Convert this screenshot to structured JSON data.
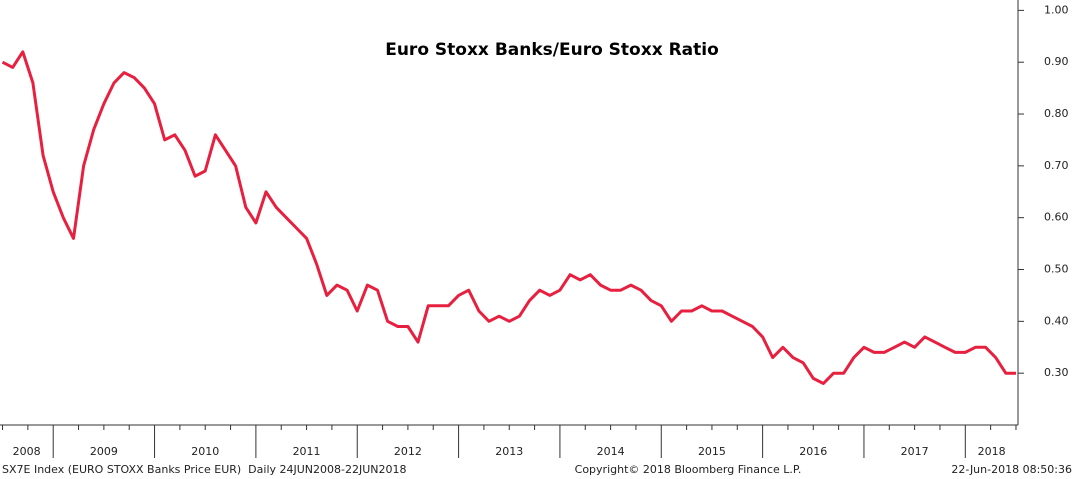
{
  "chart_data": {
    "type": "line",
    "title": "Euro Stoxx Banks/Euro Stoxx Ratio",
    "x": [
      2008.5,
      2008.6,
      2008.7,
      2008.8,
      2008.9,
      2009.0,
      2009.1,
      2009.2,
      2009.3,
      2009.4,
      2009.5,
      2009.6,
      2009.7,
      2009.8,
      2009.9,
      2010.0,
      2010.1,
      2010.2,
      2010.3,
      2010.4,
      2010.5,
      2010.6,
      2010.7,
      2010.8,
      2010.9,
      2011.0,
      2011.1,
      2011.2,
      2011.3,
      2011.4,
      2011.5,
      2011.6,
      2011.7,
      2011.8,
      2011.9,
      2012.0,
      2012.1,
      2012.2,
      2012.3,
      2012.4,
      2012.5,
      2012.6,
      2012.7,
      2012.8,
      2012.9,
      2013.0,
      2013.1,
      2013.2,
      2013.3,
      2013.4,
      2013.5,
      2013.6,
      2013.7,
      2013.8,
      2013.9,
      2014.0,
      2014.1,
      2014.2,
      2014.3,
      2014.4,
      2014.5,
      2014.6,
      2014.7,
      2014.8,
      2014.9,
      2015.0,
      2015.1,
      2015.2,
      2015.3,
      2015.4,
      2015.5,
      2015.6,
      2015.7,
      2015.8,
      2015.9,
      2016.0,
      2016.1,
      2016.2,
      2016.3,
      2016.4,
      2016.5,
      2016.6,
      2016.7,
      2016.8,
      2016.9,
      2017.0,
      2017.1,
      2017.2,
      2017.3,
      2017.4,
      2017.5,
      2017.6,
      2017.7,
      2017.8,
      2017.9,
      2018.0,
      2018.1,
      2018.2,
      2018.3,
      2018.4,
      2018.5
    ],
    "series": [
      {
        "name": "SX7E Index (EURO STOXX Banks Price EUR)",
        "color": "#e8203f",
        "values": [
          0.9,
          0.89,
          0.92,
          0.86,
          0.72,
          0.65,
          0.6,
          0.56,
          0.7,
          0.77,
          0.82,
          0.86,
          0.88,
          0.87,
          0.85,
          0.82,
          0.75,
          0.76,
          0.73,
          0.68,
          0.69,
          0.76,
          0.73,
          0.7,
          0.62,
          0.59,
          0.65,
          0.62,
          0.6,
          0.58,
          0.56,
          0.51,
          0.45,
          0.47,
          0.46,
          0.42,
          0.47,
          0.46,
          0.4,
          0.39,
          0.39,
          0.36,
          0.43,
          0.43,
          0.43,
          0.45,
          0.46,
          0.42,
          0.4,
          0.41,
          0.4,
          0.41,
          0.44,
          0.46,
          0.45,
          0.46,
          0.49,
          0.48,
          0.49,
          0.47,
          0.46,
          0.46,
          0.47,
          0.46,
          0.44,
          0.43,
          0.4,
          0.42,
          0.42,
          0.43,
          0.42,
          0.42,
          0.41,
          0.4,
          0.39,
          0.37,
          0.33,
          0.35,
          0.33,
          0.32,
          0.29,
          0.28,
          0.3,
          0.3,
          0.33,
          0.35,
          0.34,
          0.34,
          0.35,
          0.36,
          0.35,
          0.37,
          0.36,
          0.35,
          0.34,
          0.34,
          0.35,
          0.35,
          0.33,
          0.3,
          0.3
        ]
      }
    ],
    "xlim": [
      2008.475,
      2018.52
    ],
    "xticks": [
      {
        "value": 2008,
        "label": "2008"
      },
      {
        "value": 2009,
        "label": "2009"
      },
      {
        "value": 2010,
        "label": "2010"
      },
      {
        "value": 2011,
        "label": "2011"
      },
      {
        "value": 2012,
        "label": "2012"
      },
      {
        "value": 2013,
        "label": "2013"
      },
      {
        "value": 2014,
        "label": "2014"
      },
      {
        "value": 2015,
        "label": "2015"
      },
      {
        "value": 2016,
        "label": "2016"
      },
      {
        "value": 2017,
        "label": "2017"
      },
      {
        "value": 2018,
        "label": "2018"
      }
    ],
    "ylim": [
      0.2,
      1.02
    ],
    "yticks": [
      {
        "value": 0.3,
        "label": "0.30"
      },
      {
        "value": 0.4,
        "label": "0.40"
      },
      {
        "value": 0.5,
        "label": "0.50"
      },
      {
        "value": 0.6,
        "label": "0.60"
      },
      {
        "value": 0.7,
        "label": "0.70"
      },
      {
        "value": 0.8,
        "label": "0.80"
      },
      {
        "value": 0.9,
        "label": "0.90"
      },
      {
        "value": 1.0,
        "label": "1.00"
      }
    ],
    "grid": false
  },
  "footer": {
    "source": "SX7E Index (EURO STOXX Banks Price EUR)  Daily 24JUN2008-22JUN2018",
    "copyright": "Copyright© 2018 Bloomberg Finance L.P.",
    "timestamp": "22-Jun-2018 08:50:36"
  }
}
